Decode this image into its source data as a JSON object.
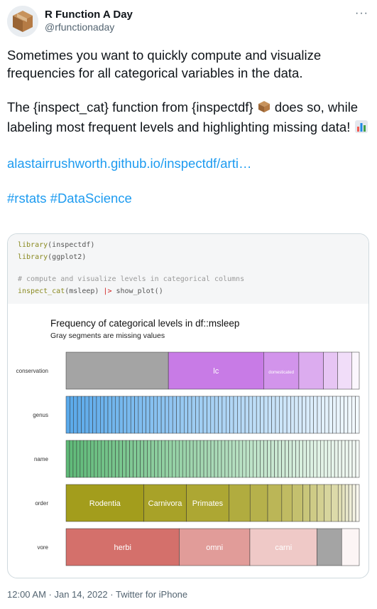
{
  "tweet": {
    "display_name": "R Function A Day",
    "handle": "@rfunctionaday",
    "more": "···",
    "para1": "Sometimes you want to quickly compute and visualize frequencies for all categorical variables in the data.",
    "para2a": "The {inspect_cat} function from {inspectdf}",
    "para2b": "does so, while labeling most frequent levels and highlighting missing data!",
    "link": "alastairrushworth.github.io/inspectdf/arti…",
    "hashtags": "#rstats #DataScience",
    "footer": "12:00 AM · Jan 14, 2022 · Twitter for iPhone",
    "link_color": "#1d9bf0",
    "icons": [
      "box-emoji-icon",
      "bar-chart-emoji-icon",
      "avatar-box-icon",
      "more-options-icon"
    ]
  },
  "code": {
    "line1_fn": "library",
    "line1_arg": "(inspectdf)",
    "line2_fn": "library",
    "line2_arg": "(ggplot2)",
    "comment": "# compute and visualize levels in categorical columns",
    "line4_fn": "inspect_cat",
    "line4_arg": "(msleep) ",
    "pipe": "|>",
    "line4_rest": " show_plot()"
  },
  "chart_data": {
    "type": "bar",
    "title": "Frequency of categorical levels in df::msleep",
    "subtitle": "Gray segments are missing values",
    "xlim": [
      0,
      1
    ],
    "rows": [
      {
        "name": "conservation",
        "color": "#c87be6",
        "segments": [
          {
            "value": 0.349,
            "label": "",
            "missing": true
          },
          {
            "value": 0.325,
            "label": "lc"
          },
          {
            "value": 0.12,
            "label": "domesticated"
          },
          {
            "value": 0.084
          },
          {
            "value": 0.048
          },
          {
            "value": 0.048
          },
          {
            "value": 0.026
          }
        ]
      },
      {
        "name": "genus",
        "color": "#5aa9ea",
        "equal_segments": 77
      },
      {
        "name": "name",
        "color": "#5fba78",
        "equal_segments": 83
      },
      {
        "name": "order",
        "color": "#a39d1c",
        "segments": [
          {
            "value": 0.265,
            "label": "Rodentia"
          },
          {
            "value": 0.145,
            "label": "Carnivora"
          },
          {
            "value": 0.145,
            "label": "Primates"
          },
          {
            "value": 0.072
          },
          {
            "value": 0.06
          },
          {
            "value": 0.048
          },
          {
            "value": 0.036
          },
          {
            "value": 0.036
          },
          {
            "value": 0.024
          },
          {
            "value": 0.024
          },
          {
            "value": 0.024
          },
          {
            "value": 0.024
          },
          {
            "value": 0.024
          },
          {
            "value": 0.012
          },
          {
            "value": 0.012
          },
          {
            "value": 0.012
          },
          {
            "value": 0.012
          },
          {
            "value": 0.012
          },
          {
            "value": 0.012
          }
        ]
      },
      {
        "name": "vore",
        "color": "#d4706b",
        "segments": [
          {
            "value": 0.386,
            "label": "herbi"
          },
          {
            "value": 0.241,
            "label": "omni"
          },
          {
            "value": 0.229,
            "label": "carni"
          },
          {
            "value": 0.084,
            "label": "",
            "missing": true
          },
          {
            "value": 0.06
          }
        ]
      }
    ]
  }
}
